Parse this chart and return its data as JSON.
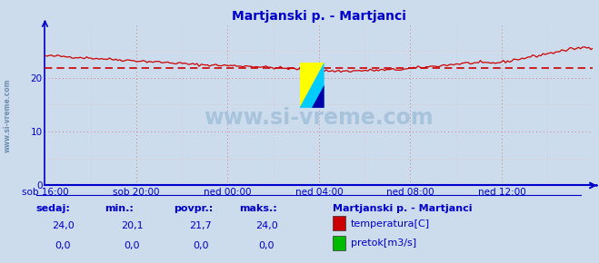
{
  "title": "Martjanski p. - Martjanci",
  "bg_color": "#ccdcec",
  "plot_bg_color": "#ccdcec",
  "grid_color_major": "#d08080",
  "grid_color_minor": "#e8b8b8",
  "x_labels": [
    "sob 16:00",
    "sob 20:00",
    "ned 00:00",
    "ned 04:00",
    "ned 08:00",
    "ned 12:00"
  ],
  "x_ticks_pos": [
    0.0,
    0.1667,
    0.3333,
    0.5,
    0.6667,
    0.8333
  ],
  "ylim": [
    0,
    30
  ],
  "yticks": [
    0,
    10,
    20
  ],
  "avg_value": 21.7,
  "temp_color": "#cc0000",
  "pretok_color": "#00bb00",
  "axis_color": "#0000cc",
  "text_color": "#0000cc",
  "watermark_text": "www.si-vreme.com",
  "watermark_color": "#a8c4dc",
  "side_text_color": "#7090b0",
  "footer_labels": [
    "sedaj:",
    "min.:",
    "povpr.:",
    "maks.:"
  ],
  "footer_values_temp": [
    "24,0",
    "20,1",
    "21,7",
    "24,0"
  ],
  "footer_values_pretok": [
    "0,0",
    "0,0",
    "0,0",
    "0,0"
  ],
  "legend_title": "Martjanski p. - Martjanci",
  "legend_items": [
    "temperatura[C]",
    "pretok[m3/s]"
  ],
  "legend_colors": [
    "#cc0000",
    "#00bb00"
  ],
  "logo_yellow": "#ffff00",
  "logo_cyan": "#00ccff",
  "logo_blue": "#0000aa"
}
